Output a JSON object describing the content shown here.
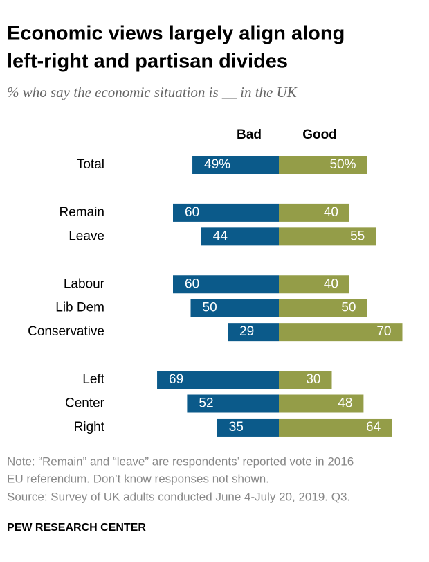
{
  "chart_data": {
    "type": "diverging-bar",
    "title": [
      "Economic views largely align along",
      "left-right and partisan divides"
    ],
    "subtitle": "% who say the economic situation is __ in the UK",
    "categories": [
      "Total",
      null,
      "Remain",
      "Leave",
      null,
      "Labour",
      "Lib Dem",
      "Conservative",
      null,
      "Left",
      "Center",
      "Right"
    ],
    "series": [
      {
        "name": "Bad",
        "color": "#0b5a8a",
        "values": [
          49,
          null,
          60,
          44,
          null,
          60,
          50,
          29,
          null,
          69,
          52,
          35
        ],
        "value_labels": [
          "49%",
          null,
          "60",
          "44",
          null,
          "60",
          "50",
          "29",
          null,
          "69",
          "52",
          "35"
        ]
      },
      {
        "name": "Good",
        "color": "#949d48",
        "values": [
          50,
          null,
          40,
          55,
          null,
          40,
          50,
          70,
          null,
          30,
          48,
          64
        ],
        "value_labels": [
          "50%",
          null,
          "40",
          "55",
          null,
          "40",
          "50",
          "70",
          null,
          "30",
          "48",
          "64"
        ]
      }
    ],
    "note": [
      "Note: “Remain” and “leave” are respondents’ reported vote in 2016",
      "EU referendum. Don’t know responses not shown."
    ],
    "source": "Source: Survey of UK adults conducted June 4-July 20, 2019. Q3.",
    "credit": "PEW RESEARCH CENTER"
  }
}
